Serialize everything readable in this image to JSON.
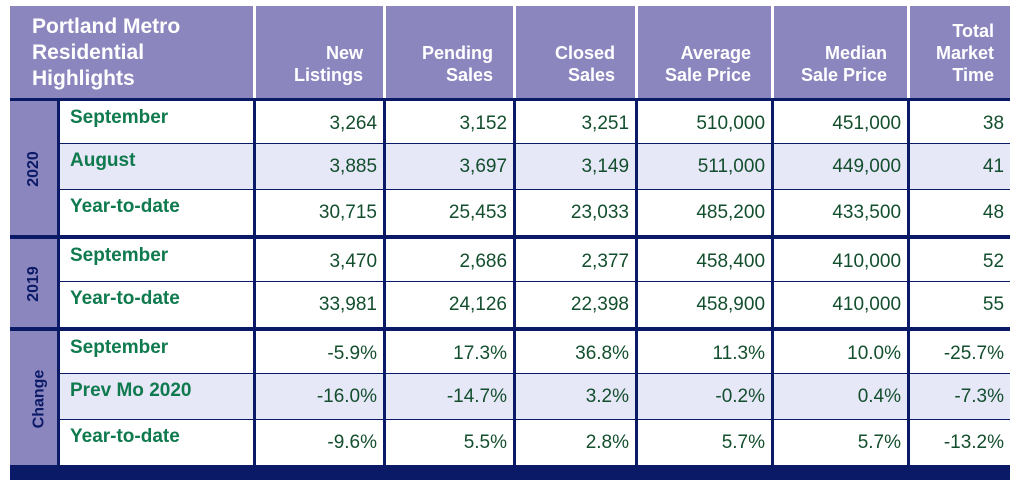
{
  "title_lines": [
    "Portland Metro",
    "Residential",
    "Highlights"
  ],
  "headers": [
    [
      "New",
      "Listings"
    ],
    [
      "Pending",
      "Sales"
    ],
    [
      "Closed",
      "Sales"
    ],
    [
      "Average",
      "Sale Price"
    ],
    [
      "Median",
      "Sale Price"
    ],
    [
      "Total",
      "Market",
      "Time"
    ]
  ],
  "groups": [
    {
      "label": "2020",
      "rows": [
        {
          "label": "September",
          "values": [
            "3,264",
            "3,152",
            "3,251",
            "510,000",
            "451,000",
            "38"
          ]
        },
        {
          "label": "August",
          "values": [
            "3,885",
            "3,697",
            "3,149",
            "511,000",
            "449,000",
            "41"
          ]
        },
        {
          "label": "Year-to-date",
          "values": [
            "30,715",
            "25,453",
            "23,033",
            "485,200",
            "433,500",
            "48"
          ]
        }
      ]
    },
    {
      "label": "2019",
      "rows": [
        {
          "label": "September",
          "values": [
            "3,470",
            "2,686",
            "2,377",
            "458,400",
            "410,000",
            "52"
          ]
        },
        {
          "label": "Year-to-date",
          "values": [
            "33,981",
            "24,126",
            "22,398",
            "458,900",
            "410,000",
            "55"
          ]
        }
      ]
    },
    {
      "label": "Change",
      "rows": [
        {
          "label": "September",
          "values": [
            "-5.9%",
            "17.3%",
            "36.8%",
            "11.3%",
            "10.0%",
            "-25.7%"
          ]
        },
        {
          "label": "Prev Mo 2020",
          "values": [
            "-16.0%",
            "-14.7%",
            "3.2%",
            "-0.2%",
            "0.4%",
            "-7.3%"
          ]
        },
        {
          "label": "Year-to-date",
          "values": [
            "-9.6%",
            "5.5%",
            "2.8%",
            "5.7%",
            "5.7%",
            "-13.2%"
          ]
        }
      ]
    }
  ]
}
